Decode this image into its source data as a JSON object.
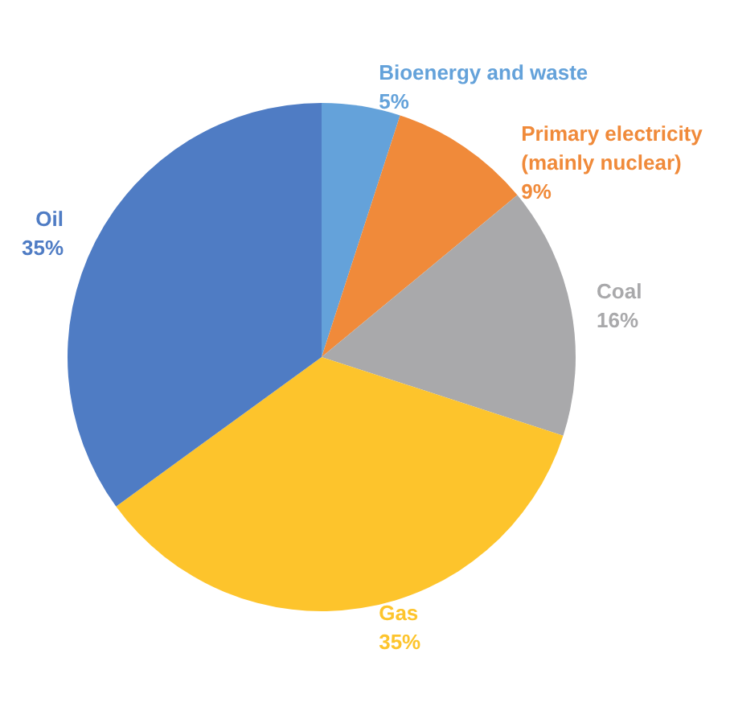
{
  "chart_data": {
    "type": "pie",
    "categories": [
      "Bioenergy and waste",
      "Primary electricity (mainly nuclear)",
      "Coal",
      "Gas",
      "Oil"
    ],
    "values": [
      5,
      9,
      16,
      35,
      35
    ],
    "value_labels": [
      "5%",
      "9%",
      "16%",
      "35%",
      "35%"
    ],
    "colors": [
      "#64a2da",
      "#f08a3a",
      "#a9a9ab",
      "#fdc42c",
      "#4f7cc4"
    ],
    "legend": false
  }
}
